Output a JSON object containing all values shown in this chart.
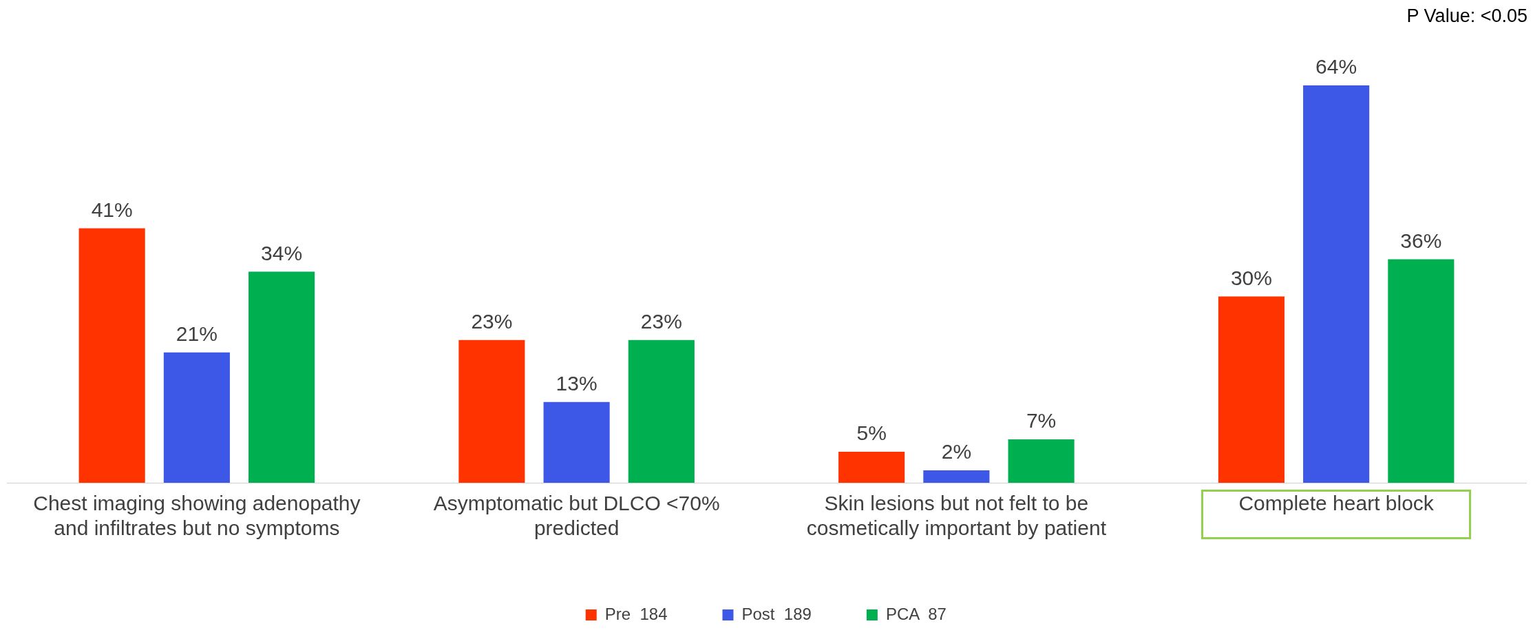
{
  "chart_data": {
    "type": "bar",
    "categories": [
      "Chest imaging showing adenopathy and infiltrates but no symptoms",
      "Asymptomatic but DLCO <70% predicted",
      "Skin lesions but not felt to be cosmetically important by patient",
      "Complete heart block"
    ],
    "series": [
      {
        "name": "Pre  184",
        "color": "#ff3300",
        "values": [
          41,
          23,
          5,
          30
        ],
        "value_labels": [
          "41%",
          "23%",
          "5%",
          "30%"
        ]
      },
      {
        "name": "Post  189",
        "color": "#3d57e6",
        "values": [
          21,
          13,
          2,
          64
        ],
        "value_labels": [
          "21%",
          "13%",
          "2%",
          "64%"
        ]
      },
      {
        "name": "PCA  87",
        "color": "#00b050",
        "values": [
          34,
          23,
          7,
          36
        ],
        "value_labels": [
          "34%",
          "23%",
          "7%",
          "36%"
        ]
      }
    ],
    "annotations": [
      "P Value: <0.05"
    ],
    "legend": "bottom",
    "grid": false,
    "tick_labels": "x"
  }
}
